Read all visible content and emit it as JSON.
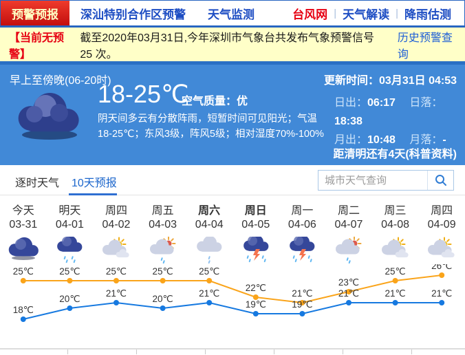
{
  "nav": {
    "tabs": [
      {
        "label": "预警预报",
        "active": true
      },
      {
        "label": "深汕特别合作区预警",
        "active": false
      },
      {
        "label": "天气监测",
        "active": false
      }
    ],
    "links": [
      "台风网",
      "天气解读",
      "降雨估测"
    ],
    "separator": "|"
  },
  "notice": {
    "badge": "【当前无预警】",
    "text": "截至2020年03月31日,今年深圳市气象台共发布气象预警信号 25 次。",
    "link": "历史预警查询"
  },
  "current": {
    "period": "早上至傍晚(06-20时)",
    "updated_label": "更新时间：",
    "updated_value": "03月31日 04:53",
    "temp": "18-25℃",
    "air_label": "空气质量：",
    "air_value": "优",
    "desc": "阴天间多云有分散阵雨，短暂时间可见阳光；气温18-25℃；东风3级，阵风5级；相对湿度70%-100%",
    "sunrise_label": "日出：",
    "sunrise": "06:17",
    "sunset_label": "日落：",
    "sunset": "18:38",
    "moonrise_label": "月出：",
    "moonrise": "10:48",
    "moonset_label": "月落：",
    "moonset": "-",
    "festival": "距清明还有4天(科普资料)"
  },
  "tabs": {
    "hourly": "逐时天气",
    "tenday": "10天预报",
    "search_placeholder": "城市天气查询"
  },
  "chart_data": {
    "type": "line",
    "categories": [
      "今天",
      "明天",
      "周四",
      "周五",
      "周六",
      "周日",
      "周一",
      "周二",
      "周三",
      "周四"
    ],
    "dates": [
      "03-31",
      "04-01",
      "04-02",
      "04-03",
      "04-04",
      "04-05",
      "04-06",
      "04-07",
      "04-08",
      "04-09"
    ],
    "bold_days": [
      4,
      5
    ],
    "icons": [
      "overcast-icon",
      "rain-icon",
      "sun-cloud-icon",
      "sun-rain-icon",
      "light-rain-icon",
      "thunderstorm-icon",
      "thunderstorm-icon",
      "sun-rain-icon",
      "sun-cloud-icon",
      "sun-cloud-icon"
    ],
    "series": [
      {
        "name": "high",
        "values": [
          25,
          25,
          25,
          25,
          25,
          22,
          21,
          23,
          25,
          26
        ],
        "color": "#faa41a"
      },
      {
        "name": "low",
        "values": [
          18,
          20,
          21,
          20,
          21,
          19,
          19,
          21,
          21,
          21
        ],
        "color": "#1679e0"
      }
    ],
    "unit": "℃",
    "ylim": [
      18,
      26
    ],
    "legend_position": "none",
    "grid": false
  },
  "colors": {
    "panel_blue": "#4189d7",
    "divider_blue": "#2a70c4",
    "notice_bg": "#ffffc8",
    "alert_red": "#e60012",
    "high_line": "#faa41a",
    "low_line": "#1679e0"
  }
}
